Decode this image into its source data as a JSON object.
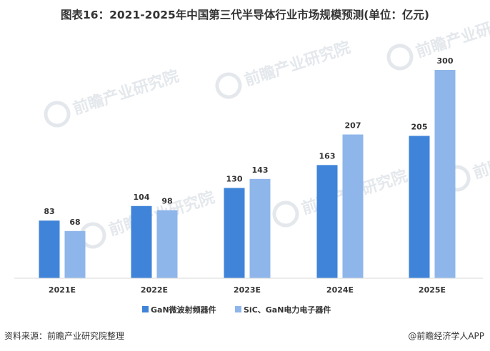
{
  "title": "图表16：2021-2025年中国第三代半导体行业市场规模预测(单位：亿元)",
  "watermark": {
    "text": "前瞻产业研究院"
  },
  "footer": {
    "source": "资料来源：前瞻产业研究院整理",
    "brand": "@前瞻经济学人APP"
  },
  "chart_data": {
    "type": "bar",
    "title": "图表16：2021-2025年中国第三代半导体行业市场规模预测(单位：亿元)",
    "categories": [
      "2021E",
      "2022E",
      "2023E",
      "2024E",
      "2025E"
    ],
    "series": [
      {
        "name": "GaN微波射频器件",
        "color": "#3f84d8",
        "values": [
          83,
          104,
          130,
          163,
          205
        ]
      },
      {
        "name": "SiC、GaN电力电子器件",
        "color": "#8fb6ea",
        "values": [
          68,
          98,
          143,
          207,
          300
        ]
      }
    ],
    "ylim": [
      0,
      300
    ],
    "xlabel": "",
    "ylabel": "",
    "grid": false,
    "legend_position": "bottom"
  }
}
